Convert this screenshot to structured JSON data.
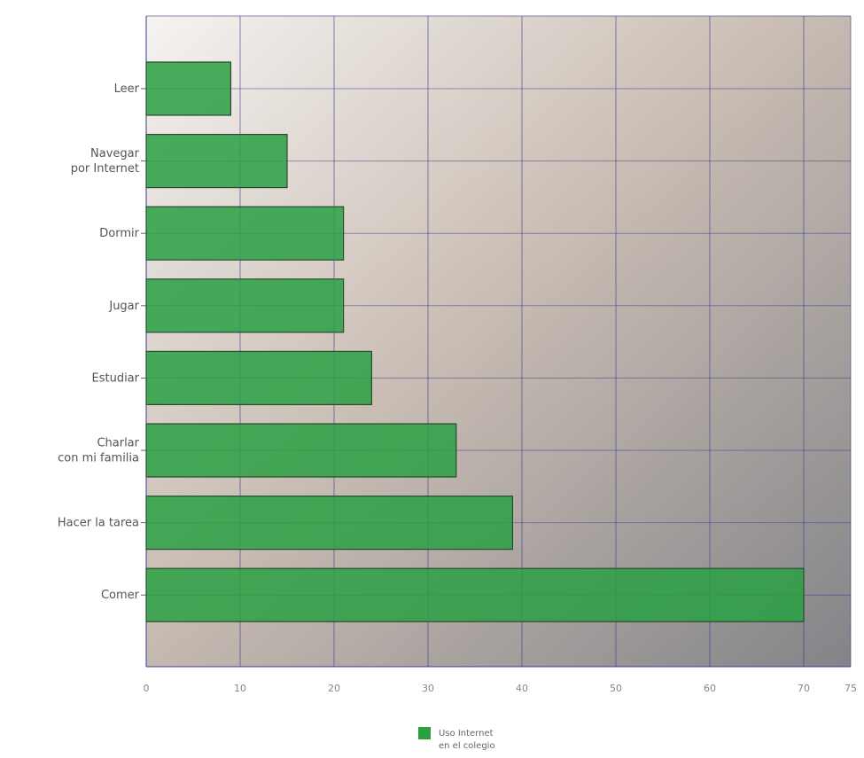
{
  "chart_data": {
    "type": "bar",
    "orientation": "horizontal",
    "categories": [
      "Leer",
      "Navegar\npor Internet",
      "Dormir",
      "Jugar",
      "Estudiar",
      "Charlar\ncon mi familia",
      "Hacer la tarea",
      "Comer"
    ],
    "series": [
      {
        "name": "Uso Internet\nen el colegio",
        "color": "#2aa043",
        "values": [
          9,
          15,
          21,
          21,
          24,
          33,
          39,
          70
        ]
      }
    ],
    "xlim": [
      0,
      75
    ],
    "xticks": [
      0,
      10,
      20,
      30,
      40,
      50,
      60,
      70,
      75
    ],
    "grid": true,
    "legend": "bottom"
  }
}
